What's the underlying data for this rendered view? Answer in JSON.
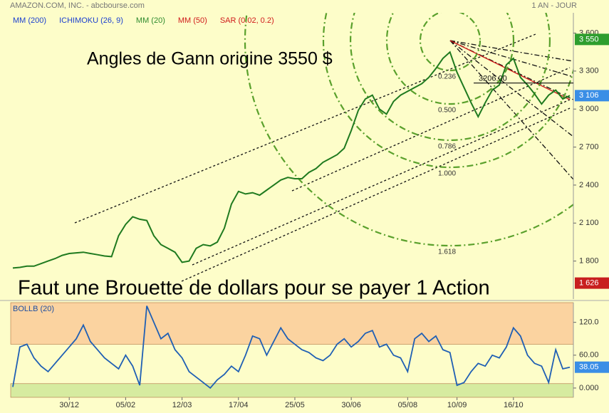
{
  "header": {
    "title": "AMAZON.COM, INC. - abcbourse.com",
    "period": "1 AN - JOUR"
  },
  "chart_data": [
    {
      "type": "line",
      "legend": [
        {
          "name": "MM (200)",
          "color": "#1a3fd0"
        },
        {
          "name": "ICHIMOKU (26, 9)",
          "color": "#1a3fd0"
        },
        {
          "name": "MM (20)",
          "color": "#2e8b2e"
        },
        {
          "name": "MM (50)",
          "color": "#d01a1a"
        },
        {
          "name": "SAR (0.02, 0.2)",
          "color": "#d01a1a"
        }
      ],
      "annotations": [
        "Angles de Gann origine 3550 $",
        "Faut une Brouette de dollars pour se payer 1 Action"
      ],
      "series": [
        {
          "color": "#1f7a1f",
          "values": [
            1745,
            1750,
            1760,
            1760,
            1780,
            1800,
            1820,
            1845,
            1860,
            1865,
            1870,
            1860,
            1850,
            1840,
            1835,
            2000,
            2090,
            2150,
            2130,
            2120,
            2000,
            1930,
            1900,
            1870,
            1790,
            1800,
            1900,
            1930,
            1920,
            1950,
            2060,
            2250,
            2350,
            2330,
            2340,
            2320,
            2360,
            2400,
            2440,
            2460,
            2450,
            2450,
            2500,
            2530,
            2580,
            2610,
            2640,
            2690,
            2830,
            2990,
            3080,
            3110,
            3000,
            2960,
            3060,
            3110,
            3140,
            3170,
            3200,
            3250,
            3320,
            3400,
            3450,
            3290,
            3170,
            3050,
            2940,
            3050,
            3150,
            3190,
            3350,
            3400,
            3250,
            3190,
            3120,
            3040,
            3110,
            3150,
            3080,
            3106
          ]
        }
      ],
      "xlim": [
        0,
        79
      ],
      "ylim": [
        1500,
        3760
      ],
      "yticks": [
        {
          "value": 3600,
          "label": "3 600"
        },
        {
          "value": 3300,
          "label": "3 300"
        },
        {
          "value": 3000,
          "label": "3 000"
        },
        {
          "value": 2700,
          "label": "2 700"
        },
        {
          "value": 2400,
          "label": "2 400"
        },
        {
          "value": 2100,
          "label": "2 100"
        },
        {
          "value": 1800,
          "label": "1 800"
        }
      ],
      "price_tags": [
        {
          "value": 3550,
          "label": "3 550",
          "color": "#2e9e2e"
        },
        {
          "value": 3106,
          "label": "3 106",
          "color": "#3a8ee6"
        },
        {
          "value": 1626,
          "label": "1 626",
          "color": "#c81e1e"
        }
      ],
      "level_line": {
        "value": 3206,
        "label": "3206.00"
      },
      "fib_arcs": [
        0.236,
        {
          "value": 0.5,
          "label": "0.500"
        },
        0.786,
        {
          "value": 1,
          "label": "1.000"
        },
        1.618
      ]
    },
    {
      "type": "line",
      "title": "BOLLB (20)",
      "series": [
        {
          "color": "#1f5fb4",
          "values": [
            2,
            75,
            80,
            55,
            40,
            30,
            45,
            60,
            75,
            90,
            115,
            85,
            70,
            55,
            45,
            35,
            60,
            40,
            5,
            150,
            120,
            90,
            100,
            70,
            55,
            30,
            20,
            10,
            0,
            15,
            25,
            40,
            30,
            60,
            95,
            90,
            60,
            85,
            110,
            90,
            80,
            70,
            65,
            55,
            50,
            60,
            80,
            90,
            75,
            85,
            100,
            105,
            75,
            80,
            60,
            55,
            30,
            90,
            100,
            85,
            95,
            70,
            65,
            5,
            10,
            30,
            45,
            40,
            60,
            55,
            75,
            110,
            95,
            60,
            45,
            40,
            10,
            70,
            35,
            38.05
          ]
        }
      ],
      "xlim": [
        0,
        79
      ],
      "ylim": [
        -17,
        156
      ],
      "yticks": [
        {
          "value": 120,
          "label": "120.0"
        },
        {
          "value": 60,
          "label": "60.00"
        },
        {
          "value": 0,
          "label": "0.000"
        }
      ],
      "xticks": [
        {
          "value": 8,
          "label": "30/12"
        },
        {
          "value": 16,
          "label": "05/02"
        },
        {
          "value": 24,
          "label": "12/03"
        },
        {
          "value": 32,
          "label": "17/04"
        },
        {
          "value": 40,
          "label": "25/05"
        },
        {
          "value": 48,
          "label": "30/06"
        },
        {
          "value": 56,
          "label": "05/08"
        },
        {
          "value": 63,
          "label": "10/09"
        },
        {
          "value": 71,
          "label": "16/10"
        }
      ],
      "zones": [
        {
          "from": 80,
          "to": 156,
          "color": "#fbd3a0"
        },
        {
          "from": -17,
          "to": 8,
          "color": "#d6ebA0"
        }
      ],
      "last_tag": {
        "value": 38.05,
        "color": "#3a8ee6"
      }
    }
  ]
}
